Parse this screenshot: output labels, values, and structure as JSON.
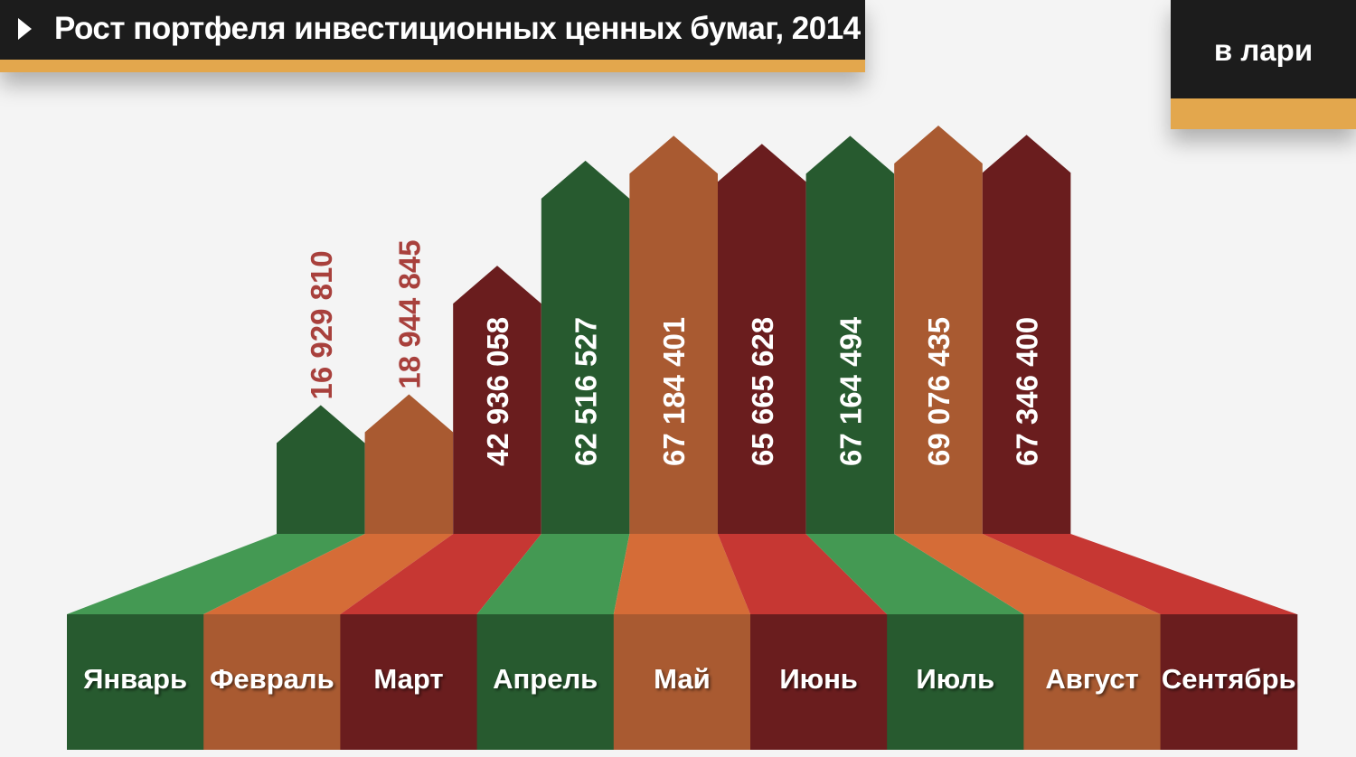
{
  "header": {
    "title": "Рост портфеля инвестиционных ценных бумаг, 2014",
    "unit": "в лари"
  },
  "colors": {
    "header_bg": "#1c1c1c",
    "accent_stripe": "#e3a74d",
    "green": "#275a2f",
    "orange": "#a95a31",
    "maroon": "#6a1d1e",
    "floor_green": "#449953",
    "floor_orange": "#d56c37",
    "floor_red": "#c63733",
    "label_value_outside": "#a8403c",
    "label_value_inside": "#ffffff"
  },
  "chart_data": {
    "type": "bar",
    "title": "Рост портфеля инвестиционных ценных бумаг, 2014",
    "ylabel": "в лари",
    "xlabel": "",
    "categories": [
      "Январь",
      "Февраль",
      "Март",
      "Апрель",
      "Май",
      "Июнь",
      "Июль",
      "Август",
      "Сентябрь"
    ],
    "values": [
      16929810,
      18944845,
      42936058,
      62516527,
      67184401,
      65665628,
      67164494,
      69076435,
      67346400
    ],
    "value_labels": [
      "16 929 810",
      "18 944 845",
      "42 936 058",
      "62 516 527",
      "67 184 401",
      "65 665 628",
      "67 164 494",
      "69 076 435",
      "67 346 400"
    ],
    "grid": false,
    "legend": "none"
  }
}
